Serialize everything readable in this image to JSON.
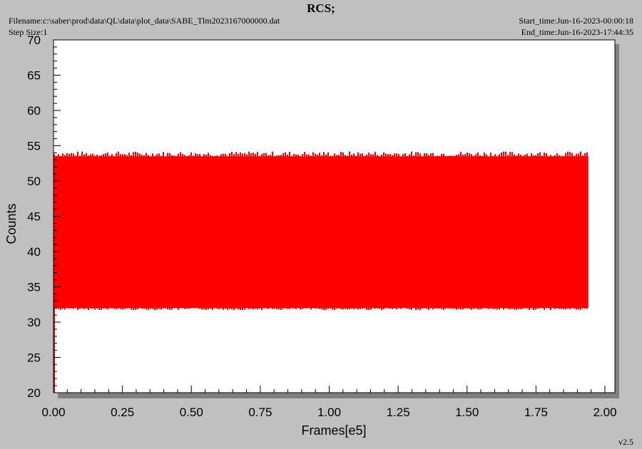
{
  "header": {
    "title": "RCS;",
    "filename": "Filename:c:\\saber\\prod\\data\\QL\\data\\plot_data\\SABE_Tlm2023167000000.dat",
    "step_size": "Step Size:1",
    "start_time": "Start_time:Jun-16-2023-00:00:18",
    "end_time": "End_time:Jun-16-2023-17:44:35"
  },
  "footer": {
    "version": "v2.5"
  },
  "colors": {
    "series": "#ff0000",
    "plot_bg": "#ffffff",
    "frame_bg": "#c0c0c0",
    "shadow": "#808080"
  },
  "chart_data": {
    "type": "line",
    "xlabel": "Frames[e5]",
    "ylabel": "Counts",
    "xlim": [
      0.0,
      2.0
    ],
    "ylim": [
      20,
      70
    ],
    "xticks": [
      "0.00",
      "0.25",
      "0.50",
      "0.75",
      "1.00",
      "1.25",
      "1.50",
      "1.75",
      "2.00"
    ],
    "yticks": [
      "20",
      "25",
      "30",
      "35",
      "40",
      "45",
      "50",
      "55",
      "60",
      "65",
      "70"
    ],
    "grid": false,
    "series": [
      {
        "color": "#ff0000",
        "x_range": [
          0.0,
          1.94
        ],
        "y_min": 32,
        "y_max": 53.5,
        "y_peak_max": 54.2,
        "y_trough_min": 31.7,
        "initial_min": 20
      }
    ]
  }
}
